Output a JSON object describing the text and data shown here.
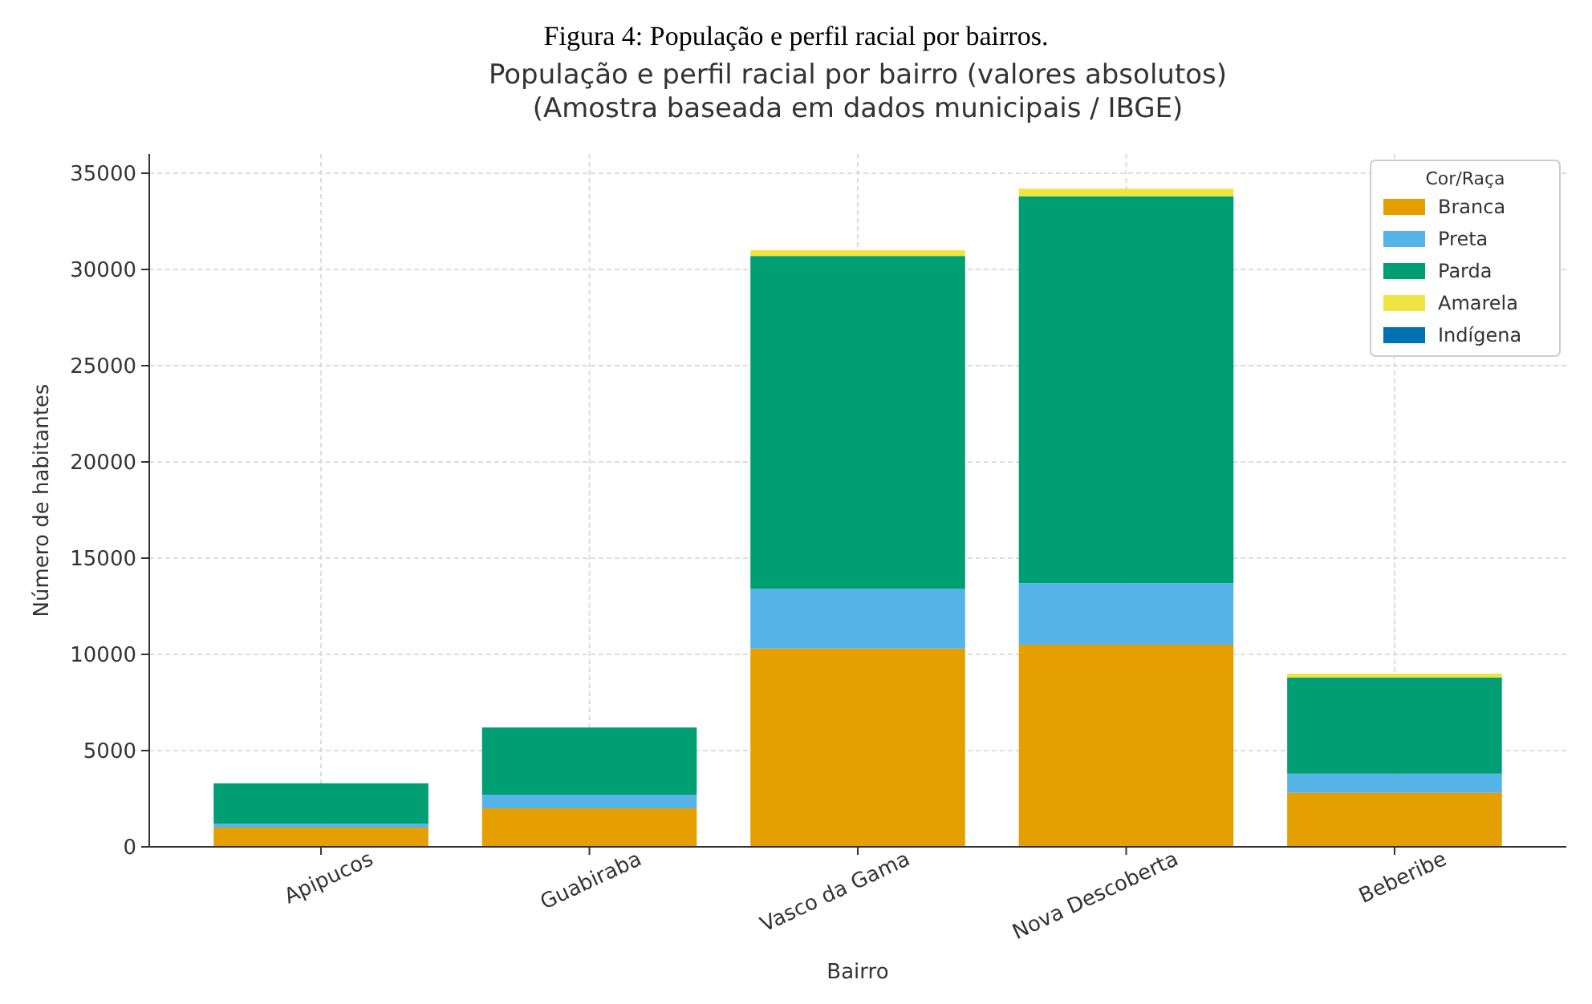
{
  "chart_data": {
    "type": "bar",
    "title": "População e perfil racial por bairro (valores absolutos)\n(Amostra baseada em dados municipais / IBGE)",
    "annotations": [
      "Figura 4:  População e perfil racial por bairros."
    ],
    "xlabel": "Bairro",
    "ylabel": "Número de habitantes",
    "legend_title": "Cor/Raça",
    "categories": [
      "Apipucos",
      "Guabiraba",
      "Vasco da Gama",
      "Nova Descoberta",
      "Beberibe"
    ],
    "stacked": true,
    "series": [
      {
        "name": "Branca",
        "color": "#e69f00",
        "values": [
          1000,
          2000,
          10300,
          10500,
          2800
        ]
      },
      {
        "name": "Preta",
        "color": "#56b4e9",
        "values": [
          200,
          700,
          3100,
          3200,
          1000
        ]
      },
      {
        "name": "Parda",
        "color": "#009e73",
        "values": [
          2100,
          3500,
          17300,
          20100,
          5000
        ]
      },
      {
        "name": "Amarela",
        "color": "#f0e442",
        "values": [
          null,
          null,
          300,
          400,
          200
        ]
      },
      {
        "name": "Indígena",
        "color": "#0072b2",
        "values": [
          null,
          null,
          null,
          null,
          null
        ]
      }
    ],
    "ylim": [
      0,
      36000
    ],
    "yticks": [
      0,
      5000,
      10000,
      15000,
      20000,
      25000,
      30000,
      35000
    ],
    "grid": true,
    "legend": "top right"
  }
}
